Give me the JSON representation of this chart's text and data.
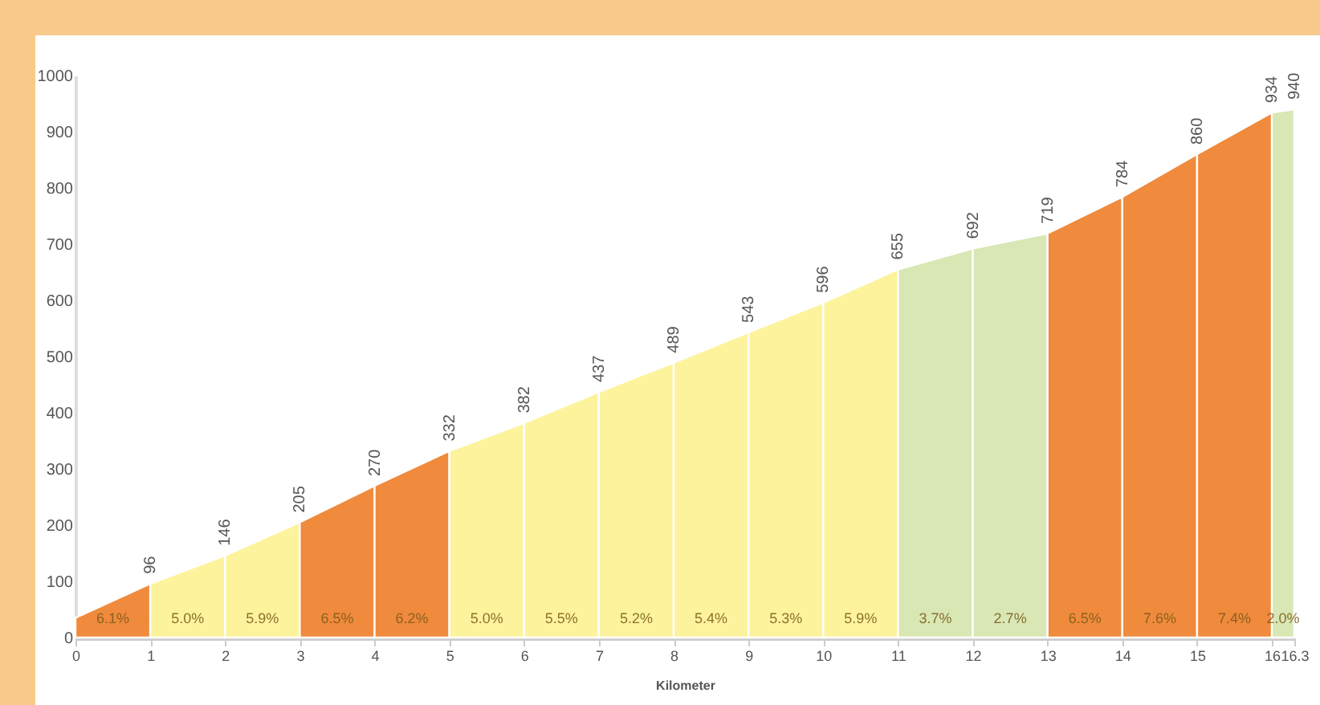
{
  "chart_data": {
    "type": "area",
    "xlabel": "Kilometer",
    "xlim": [
      0,
      16.3
    ],
    "xticks": [
      0,
      1,
      2,
      3,
      4,
      5,
      6,
      7,
      8,
      9,
      10,
      11,
      12,
      13,
      14,
      15,
      16,
      {
        "value": 16.3,
        "label": "16.3"
      }
    ],
    "ylim": [
      0,
      1000
    ],
    "yticks": [
      0,
      100,
      200,
      300,
      400,
      500,
      600,
      700,
      800,
      900,
      1000
    ],
    "legend": false,
    "series": [
      {
        "color": "#f08a3c",
        "x": [
          0,
          1
        ],
        "values": [
          35,
          96
        ],
        "value_labels": [
          null,
          "96"
        ]
      },
      {
        "color": "#fdf39c",
        "x": [
          1,
          2
        ],
        "values": [
          96,
          146
        ],
        "value_labels": [
          null,
          "146"
        ]
      },
      {
        "color": "#fdf39c",
        "x": [
          2,
          3
        ],
        "values": [
          146,
          205
        ],
        "value_labels": [
          null,
          "205"
        ]
      },
      {
        "color": "#f08a3c",
        "x": [
          3,
          4
        ],
        "values": [
          205,
          270
        ],
        "value_labels": [
          null,
          "270"
        ]
      },
      {
        "color": "#f08a3c",
        "x": [
          4,
          5
        ],
        "values": [
          270,
          332
        ],
        "value_labels": [
          null,
          "332"
        ]
      },
      {
        "color": "#fdf39c",
        "x": [
          5,
          6
        ],
        "values": [
          332,
          382
        ],
        "value_labels": [
          null,
          "382"
        ]
      },
      {
        "color": "#fdf39c",
        "x": [
          6,
          7
        ],
        "values": [
          382,
          437
        ],
        "value_labels": [
          null,
          "437"
        ]
      },
      {
        "color": "#fdf39c",
        "x": [
          7,
          8
        ],
        "values": [
          437,
          489
        ],
        "value_labels": [
          null,
          "489"
        ]
      },
      {
        "color": "#fdf39c",
        "x": [
          8,
          9
        ],
        "values": [
          489,
          543
        ],
        "value_labels": [
          null,
          "543"
        ]
      },
      {
        "color": "#fdf39c",
        "x": [
          9,
          10
        ],
        "values": [
          543,
          596
        ],
        "value_labels": [
          null,
          "596"
        ]
      },
      {
        "color": "#fdf39c",
        "x": [
          10,
          11
        ],
        "values": [
          596,
          655
        ],
        "value_labels": [
          null,
          "655"
        ]
      },
      {
        "color": "#d8e7b4",
        "x": [
          11,
          12
        ],
        "values": [
          655,
          692
        ],
        "value_labels": [
          null,
          "692"
        ]
      },
      {
        "color": "#d8e7b4",
        "x": [
          12,
          13
        ],
        "values": [
          692,
          719
        ],
        "value_labels": [
          null,
          "719"
        ]
      },
      {
        "color": "#f08a3c",
        "x": [
          13,
          14
        ],
        "values": [
          719,
          784
        ],
        "value_labels": [
          null,
          "784"
        ]
      },
      {
        "color": "#f08a3c",
        "x": [
          14,
          15
        ],
        "values": [
          784,
          860
        ],
        "value_labels": [
          null,
          "860"
        ]
      },
      {
        "color": "#f08a3c",
        "x": [
          15,
          16
        ],
        "values": [
          860,
          934
        ],
        "value_labels": [
          null,
          "934"
        ]
      },
      {
        "color": "#d8e7b4",
        "x": [
          16,
          16.3
        ],
        "values": [
          934,
          940
        ],
        "value_labels": [
          null,
          "940"
        ]
      }
    ],
    "annotations": [
      "6.1%",
      "5.0%",
      "5.9%",
      "6.5%",
      "6.2%",
      "5.0%",
      "5.5%",
      "5.2%",
      "5.4%",
      "5.3%",
      "5.9%",
      "3.7%",
      "2.7%",
      "6.5%",
      "7.6%",
      "7.4%",
      "2.0%"
    ]
  }
}
